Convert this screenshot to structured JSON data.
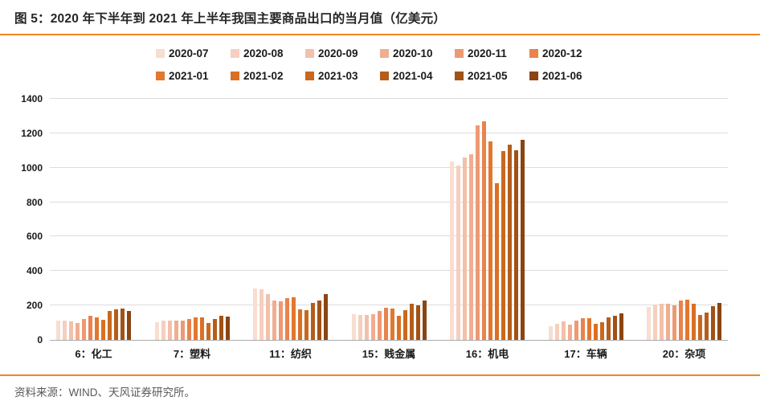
{
  "header": {
    "title": "图 5：2020 年下半年到 2021 年上半年我国主要商品出口的当月值（亿美元）",
    "accent_color": "#f0851d"
  },
  "chart_data": {
    "type": "bar",
    "title": "2020 年下半年到 2021 年上半年我国主要商品出口的当月值（亿美元）",
    "xlabel": "",
    "ylabel": "",
    "ylim": [
      0,
      1400
    ],
    "ytick_step": 200,
    "yticks": [
      0,
      200,
      400,
      600,
      800,
      1000,
      1200,
      1400
    ],
    "grid": true,
    "legend_position": "top",
    "categories": [
      "6：化工",
      "7：塑料",
      "11：纺织",
      "15：贱金属",
      "16：机电",
      "17：车辆",
      "20：杂项"
    ],
    "series": [
      {
        "name": "2020-07",
        "color": "#f8ddd1",
        "values": [
          110,
          104,
          298,
          149,
          1034,
          81,
          192
        ]
      },
      {
        "name": "2020-08",
        "color": "#f6cfbe",
        "values": [
          110,
          112,
          293,
          143,
          1015,
          93,
          205
        ]
      },
      {
        "name": "2020-09",
        "color": "#f3c0a9",
        "values": [
          106,
          112,
          264,
          144,
          1060,
          109,
          211
        ]
      },
      {
        "name": "2020-10",
        "color": "#f0ae90",
        "values": [
          100,
          110,
          231,
          149,
          1077,
          87,
          208
        ]
      },
      {
        "name": "2020-11",
        "color": "#ed9a73",
        "values": [
          122,
          112,
          226,
          169,
          1244,
          112,
          202
        ]
      },
      {
        "name": "2020-12",
        "color": "#e9834e",
        "values": [
          138,
          122,
          245,
          188,
          1270,
          127,
          228
        ]
      },
      {
        "name": "2021-01",
        "color": "#e2772e",
        "values": [
          132,
          130,
          248,
          183,
          1154,
          127,
          234
        ]
      },
      {
        "name": "2021-02",
        "color": "#da7024",
        "values": [
          118,
          130,
          177,
          140,
          912,
          95,
          211
        ]
      },
      {
        "name": "2021-03",
        "color": "#c9681f",
        "values": [
          166,
          96,
          171,
          175,
          1099,
          105,
          146
        ]
      },
      {
        "name": "2021-04",
        "color": "#b55d1b",
        "values": [
          178,
          122,
          217,
          209,
          1133,
          132,
          161
        ]
      },
      {
        "name": "2021-05",
        "color": "#a05217",
        "values": [
          180,
          140,
          231,
          202,
          1101,
          138,
          198
        ]
      },
      {
        "name": "2021-06",
        "color": "#8a4513",
        "values": [
          170,
          135,
          264,
          231,
          1162,
          152,
          215
        ]
      }
    ]
  },
  "footer": {
    "source": "资料来源：WIND、天风证券研究所。"
  }
}
